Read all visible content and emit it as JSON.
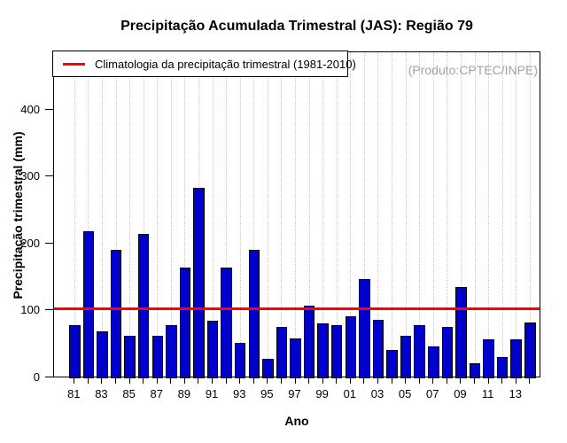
{
  "title": "Precipitação Acumulada Trimestral (JAS): Região 79",
  "annotation": "(Produto:CPTEC/INPE)",
  "legend": {
    "label": "Climatologia da precipitação trimestral (1981-2010)",
    "line_color": "#ff0000"
  },
  "colors": {
    "bar_fill": "#0000cd",
    "bar_border": "#000000",
    "reference_line": "#ff0000",
    "grid": "#c9c9c9",
    "annotation_text": "#a2a2a2"
  },
  "chart_data": {
    "type": "bar",
    "title": "Precipitação Acumulada Trimestral (JAS): Região 79",
    "xlabel": "Ano",
    "ylabel": "Precipitação trimestral (mm)",
    "ylim": [
      0,
      487
    ],
    "yticks": [
      0,
      100,
      200,
      300,
      400
    ],
    "grid": "vertical dotted gridline at every bar",
    "legend_position": "top-left",
    "reference_line": {
      "label": "Climatologia da precipitação trimestral (1981-2010)",
      "value": 105
    },
    "categories": [
      "81",
      "82",
      "83",
      "84",
      "85",
      "86",
      "87",
      "88",
      "89",
      "90",
      "91",
      "92",
      "93",
      "94",
      "95",
      "96",
      "97",
      "98",
      "99",
      "00",
      "01",
      "02",
      "03",
      "04",
      "05",
      "06",
      "07",
      "08",
      "09",
      "10",
      "11",
      "12",
      "13",
      "14"
    ],
    "values": [
      80,
      220,
      70,
      192,
      64,
      216,
      64,
      80,
      165,
      285,
      86,
      166,
      53,
      192,
      29,
      77,
      60,
      108,
      82,
      80,
      93,
      148,
      88,
      43,
      64,
      79,
      48,
      77,
      136,
      22,
      58,
      32,
      58,
      84
    ],
    "xtick_labels": [
      "81",
      "83",
      "85",
      "87",
      "89",
      "91",
      "93",
      "95",
      "97",
      "99",
      "01",
      "03",
      "05",
      "07",
      "09",
      "11",
      "13"
    ]
  }
}
